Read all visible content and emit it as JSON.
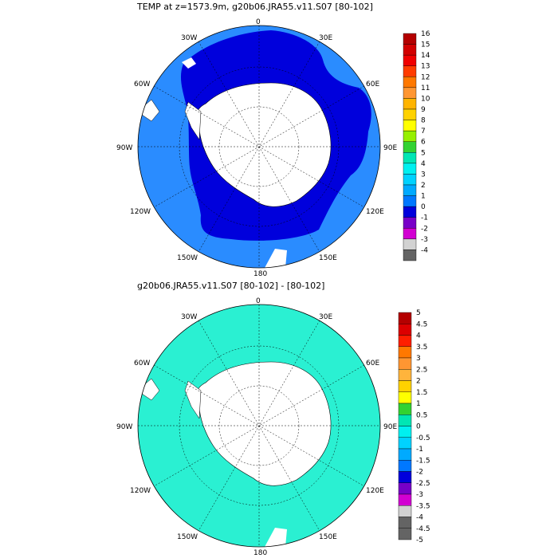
{
  "panels": [
    {
      "id": "top",
      "title": "TEMP at z=1573.9m, g20b06.JRA55.v11.S07 [80-102]",
      "lon_labels": [
        "0",
        "30E",
        "60E",
        "90E",
        "120E",
        "150E",
        "180",
        "150W",
        "120W",
        "90W",
        "60W",
        "30W"
      ],
      "colorbar": {
        "labels": [
          "16",
          "15",
          "14",
          "13",
          "12",
          "11",
          "10",
          "9",
          "8",
          "7",
          "6",
          "5",
          "4",
          "3",
          "2",
          "1",
          "0",
          "-1",
          "-2",
          "-3",
          "-4"
        ],
        "colors": [
          "#b40000",
          "#d20000",
          "#f00000",
          "#ff3c00",
          "#ff7800",
          "#ff9632",
          "#ffb400",
          "#ffd200",
          "#ffff00",
          "#96f000",
          "#32d232",
          "#00e6b4",
          "#00f0f0",
          "#00d2ff",
          "#00aaff",
          "#0078ff",
          "#0000dc",
          "#7800c8",
          "#d200d2",
          "#d2d2d2",
          "#646464"
        ]
      },
      "fields": {
        "dominant_color": "#2a8cff",
        "deep_color": "#0000dc",
        "land_color": "#ffffff"
      }
    },
    {
      "id": "bottom",
      "title": "g20b06.JRA55.v11.S07 [80-102] -  [80-102]",
      "lon_labels": [
        "0",
        "30E",
        "60E",
        "90E",
        "120E",
        "150E",
        "180",
        "150W",
        "120W",
        "90W",
        "60W",
        "30W"
      ],
      "colorbar": {
        "labels": [
          "5",
          "4.5",
          "4",
          "3.5",
          "3",
          "2.5",
          "2",
          "1.5",
          "1",
          "0.5",
          "0",
          "-0.5",
          "-1",
          "-1.5",
          "-2",
          "-2.5",
          "-3",
          "-3.5",
          "-4",
          "-4.5",
          "-5"
        ],
        "colors": [
          "#b40000",
          "#dc0000",
          "#ff1e00",
          "#ff7800",
          "#ff9632",
          "#ffb43c",
          "#ffd200",
          "#ffff00",
          "#32d232",
          "#00e6b4",
          "#00f0f0",
          "#00d2ff",
          "#00aaff",
          "#0078ff",
          "#0000dc",
          "#7800c8",
          "#d200d2",
          "#d2d2d2",
          "#646464",
          "#646464"
        ]
      },
      "fields": {
        "dominant_color": "#2af0d2",
        "land_color": "#ffffff"
      }
    }
  ]
}
